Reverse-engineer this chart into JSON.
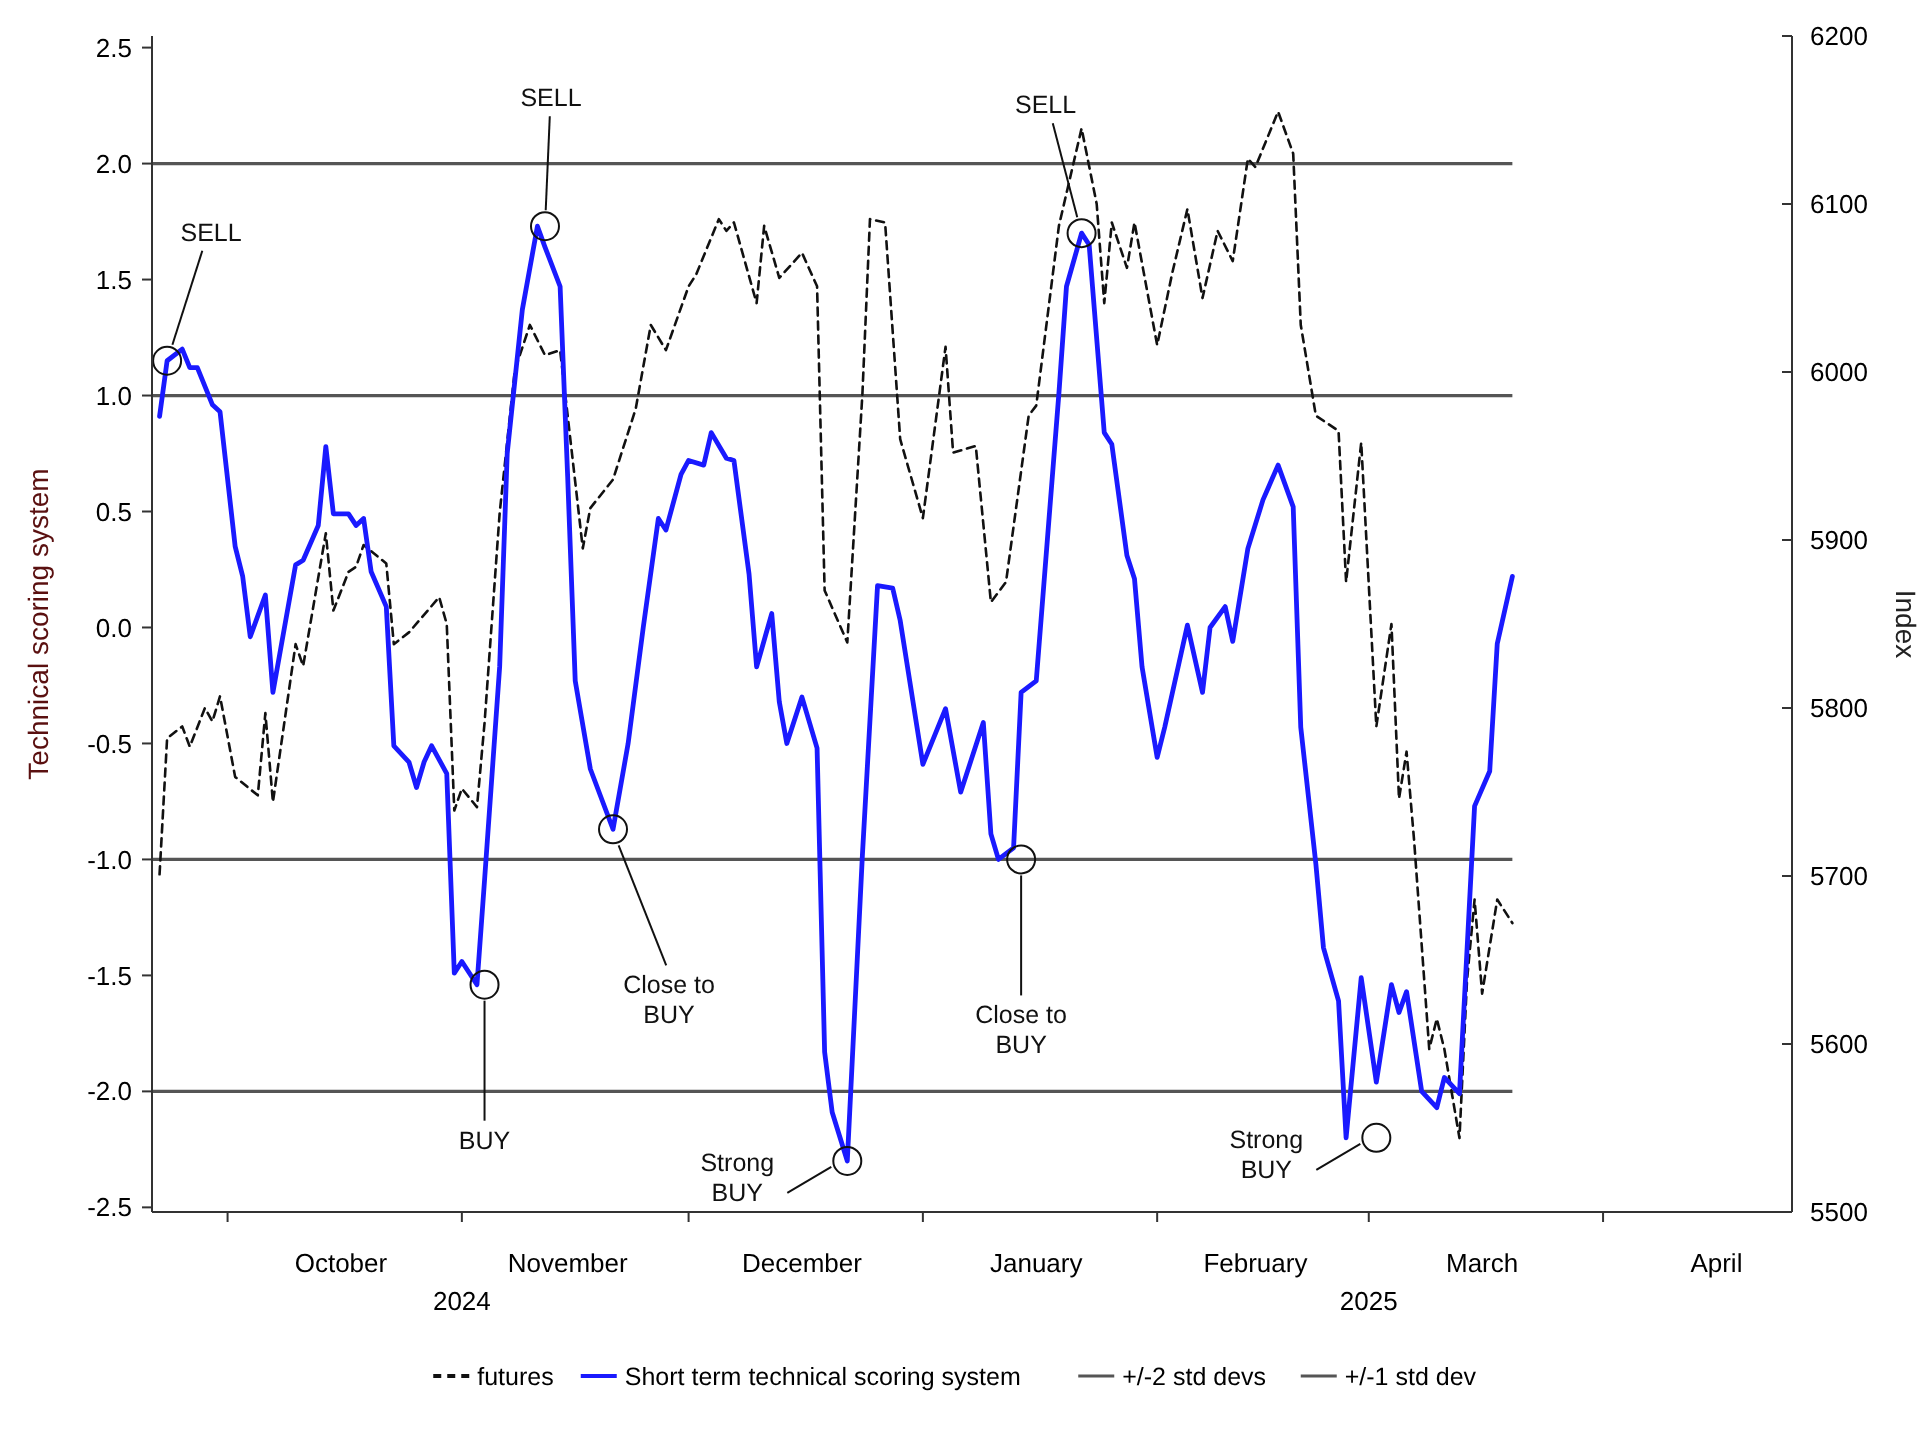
{
  "chart_data": {
    "type": "line",
    "xlim": [
      "2024-09-21T00:00",
      "2025-04-26T00:00"
    ],
    "xticks": [
      {
        "value": "2024-10-01",
        "label": null
      },
      {
        "value": "2024-11-01",
        "label": null
      },
      {
        "value": "2024-12-01",
        "label": null
      },
      {
        "value": "2025-01-01",
        "label": null
      },
      {
        "value": "2025-02-01",
        "label": null
      },
      {
        "value": "2025-03-01",
        "label": null
      },
      {
        "value": "2025-04-01",
        "label": null
      },
      {
        "value": "2024-10-16",
        "label": "October"
      },
      {
        "value": "2024-11-15",
        "label": "November"
      },
      {
        "value": "2024-12-16",
        "label": "December"
      },
      {
        "value": "2025-01-16",
        "label": "January"
      },
      {
        "value": "2025-02-14",
        "label": "February"
      },
      {
        "value": "2025-03-16",
        "label": "March"
      },
      {
        "value": "2025-04-16",
        "label": "April"
      }
    ],
    "x2lim": [
      "2024-09-21T00:00",
      "2025-04-26T00:00"
    ],
    "x2ticks": [
      {
        "value": "2024-11-01",
        "label": "2024"
      },
      {
        "value": "2025-03-01",
        "label": "2025"
      }
    ],
    "ylim": [
      -2.52,
      2.55
    ],
    "yticks": [
      {
        "value": -2.5,
        "label": "-2.5"
      },
      {
        "value": -2,
        "label": "-2.0"
      },
      {
        "value": -1.5,
        "label": "-1.5"
      },
      {
        "value": -1,
        "label": "-1.0"
      },
      {
        "value": -0.5,
        "label": "-0.5"
      },
      {
        "value": 0,
        "label": "0.0"
      },
      {
        "value": 0.5,
        "label": "0.5"
      },
      {
        "value": 1,
        "label": "1.0"
      },
      {
        "value": 1.5,
        "label": "1.5"
      },
      {
        "value": 2,
        "label": "2.0"
      },
      {
        "value": 2.5,
        "label": "2.5"
      }
    ],
    "y2lim": [
      5500,
      6200
    ],
    "y2ticks": [
      5500,
      5600,
      5700,
      5800,
      5900,
      6000,
      6100,
      6200
    ],
    "ylabel": "Technical scoring system",
    "y2label": "Index",
    "legend": "bottom",
    "series": [
      {
        "name": "futures",
        "color": "#111111",
        "axis": "y2",
        "line_style": "dashed",
        "x": [
          "2024-09-22",
          "2024-09-23",
          "2024-09-25",
          "2024-09-26",
          "2024-09-28",
          "2024-09-29",
          "2024-09-30",
          "2024-10-02",
          "2024-10-05",
          "2024-10-06",
          "2024-10-07",
          "2024-10-10",
          "2024-10-11",
          "2024-10-14",
          "2024-10-15",
          "2024-10-17",
          "2024-10-18",
          "2024-10-19",
          "2024-10-22",
          "2024-10-23",
          "2024-10-25",
          "2024-10-29",
          "2024-10-30",
          "2024-10-31",
          "2024-11-01",
          "2024-11-03",
          "2024-11-04",
          "2024-11-06",
          "2024-11-08",
          "2024-11-10",
          "2024-11-12",
          "2024-11-14",
          "2024-11-15",
          "2024-11-17",
          "2024-11-18",
          "2024-11-21",
          "2024-11-24",
          "2024-11-26",
          "2024-11-28",
          "2024-12-01",
          "2024-12-02",
          "2024-12-05",
          "2024-12-06",
          "2024-12-07",
          "2024-12-10",
          "2024-12-11",
          "2024-12-13",
          "2024-12-16",
          "2024-12-18",
          "2024-12-19",
          "2024-12-22",
          "2024-12-24",
          "2024-12-25",
          "2024-12-27",
          "2024-12-29",
          "2025-01-01",
          "2025-01-04",
          "2025-01-05",
          "2025-01-08",
          "2025-01-10",
          "2025-01-12",
          "2025-01-15",
          "2025-01-16",
          "2025-01-19",
          "2025-01-22",
          "2025-01-24",
          "2025-01-25",
          "2025-01-26",
          "2025-01-28",
          "2025-01-29",
          "2025-02-01",
          "2025-02-03",
          "2025-02-05",
          "2025-02-07",
          "2025-02-09",
          "2025-02-11",
          "2025-02-13",
          "2025-02-14",
          "2025-02-17",
          "2025-02-19",
          "2025-02-20",
          "2025-02-22",
          "2025-02-25",
          "2025-02-26",
          "2025-02-28",
          "2025-03-02",
          "2025-03-04",
          "2025-03-05",
          "2025-03-06",
          "2025-03-07",
          "2025-03-09",
          "2025-03-10",
          "2025-03-11",
          "2025-03-13",
          "2025-03-14",
          "2025-03-15",
          "2025-03-16",
          "2025-03-18",
          "2025-03-20"
        ],
        "values": [
          5701,
          5782,
          5789,
          5777,
          5800,
          5792,
          5807,
          5759,
          5748,
          5797,
          5744,
          5838,
          5825,
          5904,
          5858,
          5881,
          5884,
          5897,
          5886,
          5838,
          5845,
          5866,
          5850,
          5739,
          5752,
          5741,
          5791,
          5916,
          6001,
          6028,
          6010,
          6013,
          5974,
          5895,
          5919,
          5936,
          5978,
          6028,
          6013,
          6051,
          6058,
          6091,
          6084,
          6089,
          6041,
          6087,
          6056,
          6071,
          6051,
          5870,
          5839,
          5987,
          6091,
          6089,
          5960,
          5913,
          6015,
          5952,
          5956,
          5863,
          5875,
          5974,
          5980,
          6087,
          6145,
          6100,
          6041,
          6089,
          6062,
          6089,
          6016,
          6059,
          6097,
          6044,
          6084,
          6066,
          6127,
          6122,
          6155,
          6130,
          6028,
          5974,
          5965,
          5875,
          5958,
          5789,
          5850,
          5746,
          5774,
          5721,
          5597,
          5615,
          5597,
          5544,
          5638,
          5686,
          5630,
          5686,
          5672
        ]
      },
      {
        "name": "Short term technical scoring system",
        "color": "#1a1aff",
        "axis": "y",
        "line_style": "solid",
        "x": [
          "2024-09-22",
          "2024-09-23",
          "2024-09-25",
          "2024-09-26",
          "2024-09-27",
          "2024-09-29",
          "2024-09-30",
          "2024-10-02",
          "2024-10-03",
          "2024-10-04",
          "2024-10-06",
          "2024-10-07",
          "2024-10-10",
          "2024-10-11",
          "2024-10-13",
          "2024-10-14",
          "2024-10-15",
          "2024-10-17",
          "2024-10-18",
          "2024-10-19",
          "2024-10-20",
          "2024-10-22",
          "2024-10-23",
          "2024-10-25",
          "2024-10-26",
          "2024-10-27",
          "2024-10-28",
          "2024-10-30",
          "2024-10-31",
          "2024-11-01",
          "2024-11-03",
          "2024-11-04",
          "2024-11-06",
          "2024-11-07",
          "2024-11-09",
          "2024-11-11",
          "2024-11-12",
          "2024-11-14",
          "2024-11-15",
          "2024-11-16",
          "2024-11-18",
          "2024-11-21",
          "2024-11-23",
          "2024-11-25",
          "2024-11-27",
          "2024-11-28",
          "2024-11-30",
          "2024-12-01",
          "2024-12-03",
          "2024-12-04",
          "2024-12-06",
          "2024-12-07",
          "2024-12-09",
          "2024-12-10",
          "2024-12-12",
          "2024-12-13",
          "2024-12-14",
          "2024-12-16",
          "2024-12-18",
          "2024-12-19",
          "2024-12-20",
          "2024-12-22",
          "2024-12-24",
          "2024-12-26",
          "2024-12-28",
          "2024-12-29",
          "2025-01-01",
          "2025-01-04",
          "2025-01-06",
          "2025-01-09",
          "2025-01-10",
          "2025-01-11",
          "2025-01-13",
          "2025-01-14",
          "2025-01-16",
          "2025-01-19",
          "2025-01-20",
          "2025-01-22",
          "2025-01-23",
          "2025-01-25",
          "2025-01-26",
          "2025-01-28",
          "2025-01-29",
          "2025-01-30",
          "2025-02-01",
          "2025-02-02",
          "2025-02-05",
          "2025-02-07",
          "2025-02-08",
          "2025-02-10",
          "2025-02-11",
          "2025-02-13",
          "2025-02-15",
          "2025-02-17",
          "2025-02-19",
          "2025-02-20",
          "2025-02-22",
          "2025-02-23",
          "2025-02-25",
          "2025-02-26",
          "2025-02-28",
          "2025-03-02",
          "2025-03-04",
          "2025-03-05",
          "2025-03-06",
          "2025-03-08",
          "2025-03-10",
          "2025-03-11",
          "2025-03-13",
          "2025-03-15",
          "2025-03-17",
          "2025-03-18",
          "2025-03-20"
        ],
        "values": [
          0.91,
          1.15,
          1.2,
          1.12,
          1.12,
          0.96,
          0.93,
          0.35,
          0.22,
          -0.04,
          0.14,
          -0.28,
          0.27,
          0.29,
          0.44,
          0.78,
          0.49,
          0.49,
          0.44,
          0.47,
          0.24,
          0.09,
          -0.51,
          -0.58,
          -0.69,
          -0.58,
          -0.51,
          -0.63,
          -1.49,
          -1.44,
          -1.54,
          -1.09,
          -0.17,
          0.75,
          1.37,
          1.73,
          1.64,
          1.47,
          0.65,
          -0.23,
          -0.61,
          -0.87,
          -0.5,
          0,
          0.47,
          0.42,
          0.66,
          0.72,
          0.7,
          0.84,
          0.73,
          0.72,
          0.23,
          -0.17,
          0.06,
          -0.32,
          -0.5,
          -0.3,
          -0.52,
          -1.83,
          -2.09,
          -2.3,
          -0.98,
          0.18,
          0.17,
          0.03,
          -0.59,
          -0.35,
          -0.71,
          -0.41,
          -0.89,
          -1,
          -0.95,
          -0.28,
          -0.23,
          1.01,
          1.47,
          1.7,
          1.65,
          0.84,
          0.79,
          0.31,
          0.21,
          -0.17,
          -0.56,
          -0.43,
          0.01,
          -0.28,
          0,
          0.09,
          -0.06,
          0.34,
          0.55,
          0.7,
          0.52,
          -0.43,
          -1.02,
          -1.38,
          -1.61,
          -2.2,
          -1.51,
          -1.96,
          -1.54,
          -1.66,
          -1.57,
          -2,
          -2.07,
          -1.94,
          -2.01,
          -0.77,
          -0.62,
          -0.07,
          0.22
        ]
      }
    ],
    "ref_lines": [
      {
        "axis": "y",
        "value": 2,
        "label": "+/-2 std devs",
        "color": "#555555"
      },
      {
        "axis": "y",
        "value": -2,
        "color": "#555555"
      },
      {
        "axis": "y",
        "value": 1,
        "label": "+/-1 std dev",
        "color": "#555555"
      },
      {
        "axis": "y",
        "value": -1,
        "color": "#555555"
      }
    ],
    "annotations": [
      {
        "text": "SELL",
        "x": "2024-09-23",
        "y": 1.15
      },
      {
        "text": "SELL",
        "x": "2024-11-12",
        "y": 1.73
      },
      {
        "text": "SELL",
        "x": "2025-01-22",
        "y": 1.7
      },
      {
        "text": "BUY",
        "x": "2024-11-04",
        "y": -1.54
      },
      {
        "text": "Close to\nBUY",
        "x": "2024-11-21",
        "y": -0.87
      },
      {
        "text": "Strong\nBUY",
        "x": "2024-12-22",
        "y": -2.3
      },
      {
        "text": "Close to\nBUY",
        "x": "2025-01-14",
        "y": -1.0
      },
      {
        "text": "Strong\nBUY",
        "x": "2025-03-02",
        "y": -2.2
      }
    ]
  }
}
